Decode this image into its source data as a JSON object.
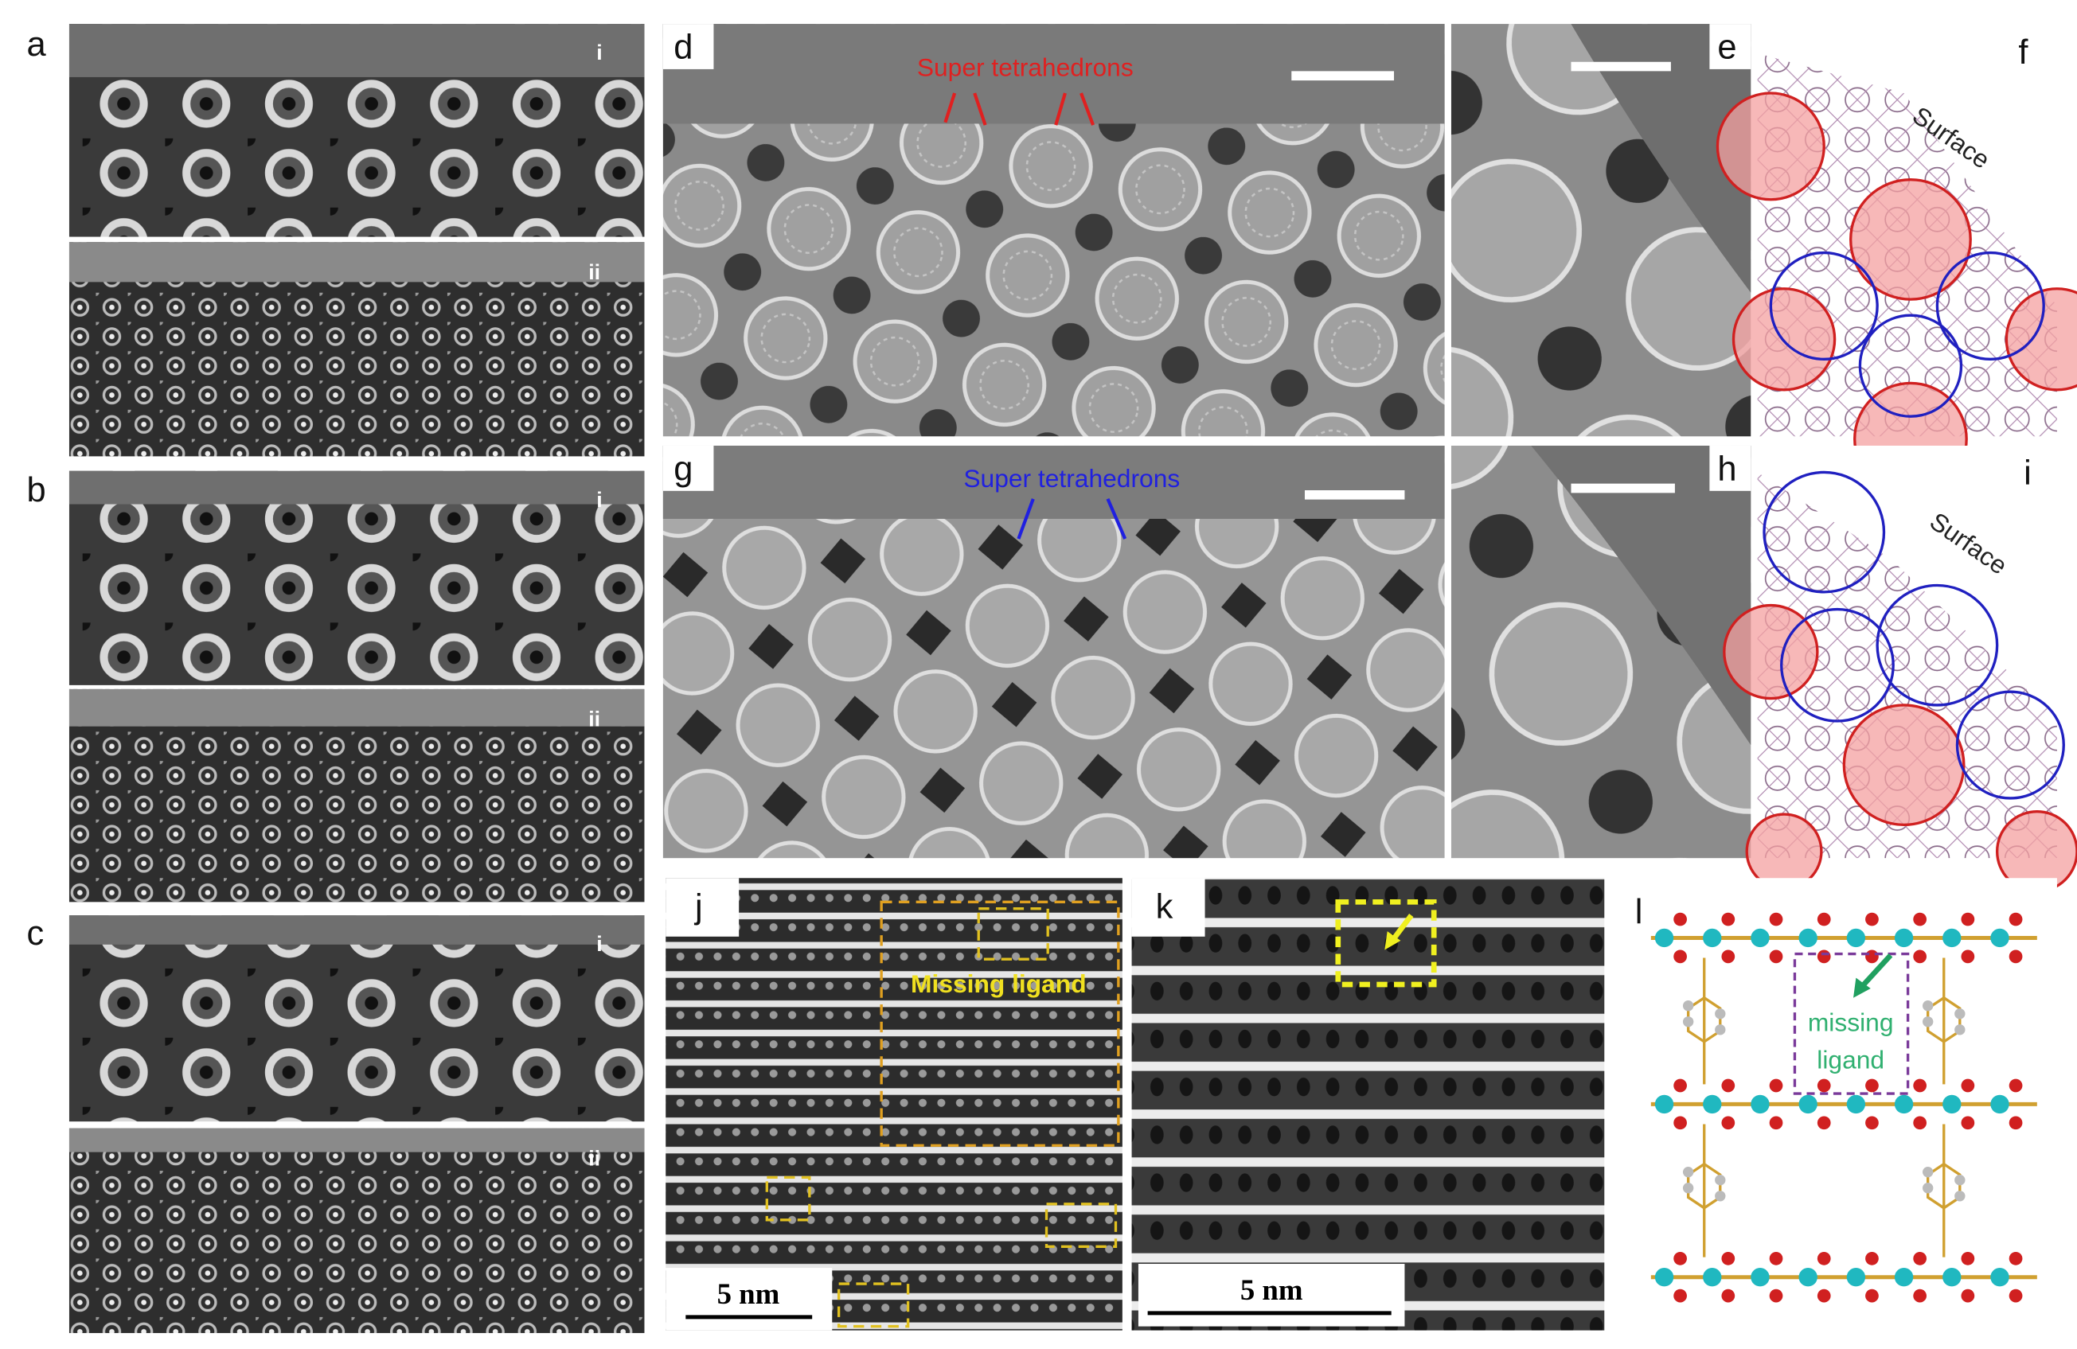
{
  "panel_labels": [
    "a",
    "b",
    "c",
    "d",
    "e",
    "f",
    "g",
    "h",
    "i",
    "j",
    "k",
    "l"
  ],
  "sub_labels": {
    "a": [
      "i",
      "ii"
    ],
    "b": [
      "i",
      "ii"
    ],
    "c": [
      "i",
      "ii"
    ]
  },
  "annotations": {
    "d": "Super tetrahedrons",
    "g": "Super tetrahedrons",
    "f": "Surface",
    "i": "Surface",
    "j": "Missing ligand",
    "l": [
      "missing",
      "ligand"
    ]
  },
  "scale_bars": {
    "j": "5 nm",
    "k": "5 nm"
  }
}
